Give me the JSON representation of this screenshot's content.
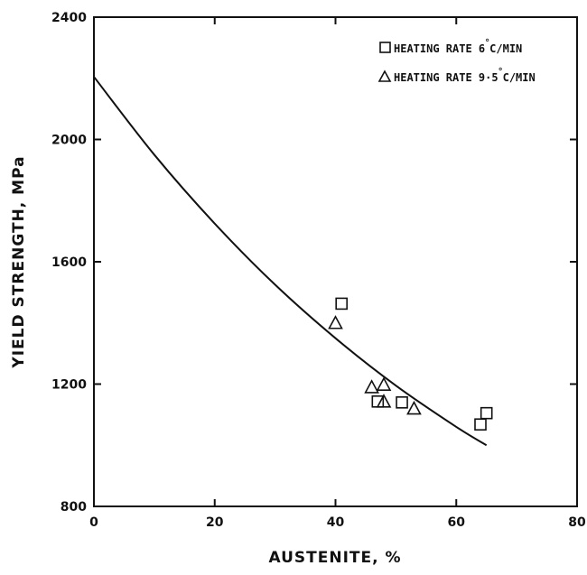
{
  "chart_data": {
    "type": "scatter",
    "title": "",
    "xlabel": "AUSTENITE, %",
    "ylabel": "YIELD STRENGTH, MPa",
    "xlim": [
      0,
      80
    ],
    "ylim": [
      800,
      2400
    ],
    "x_ticks": [
      "0",
      "20",
      "40",
      "60",
      "80"
    ],
    "y_ticks": [
      "800",
      "1200",
      "1600",
      "2000",
      "2400"
    ],
    "grid": false,
    "legend_position": "top-right",
    "series": [
      {
        "name": "HEATING RATE 6°C/MIN",
        "marker": "square",
        "points": [
          {
            "x": 41,
            "y": 1463
          },
          {
            "x": 47,
            "y": 1143
          },
          {
            "x": 51,
            "y": 1140
          },
          {
            "x": 64,
            "y": 1068
          },
          {
            "x": 65,
            "y": 1105
          }
        ]
      },
      {
        "name": "HEATING RATE 9·5°C/MIN",
        "marker": "triangle",
        "points": [
          {
            "x": 40,
            "y": 1400
          },
          {
            "x": 46,
            "y": 1190
          },
          {
            "x": 48,
            "y": 1198
          },
          {
            "x": 48,
            "y": 1143
          },
          {
            "x": 53,
            "y": 1120
          }
        ]
      }
    ],
    "fit_curve": {
      "points": [
        {
          "x": 0,
          "y": 2205
        },
        {
          "x": 10,
          "y": 1950
        },
        {
          "x": 20,
          "y": 1725
        },
        {
          "x": 30,
          "y": 1525
        },
        {
          "x": 40,
          "y": 1350
        },
        {
          "x": 50,
          "y": 1195
        },
        {
          "x": 60,
          "y": 1060
        },
        {
          "x": 65,
          "y": 1000
        }
      ]
    },
    "legend_labels": [
      {
        "prefix": "HEATING RATE 6",
        "deg": "°",
        "suffix": "C/MIN"
      },
      {
        "prefix": "HEATING RATE 9·5",
        "deg": "°",
        "suffix": "C/MIN"
      }
    ]
  }
}
